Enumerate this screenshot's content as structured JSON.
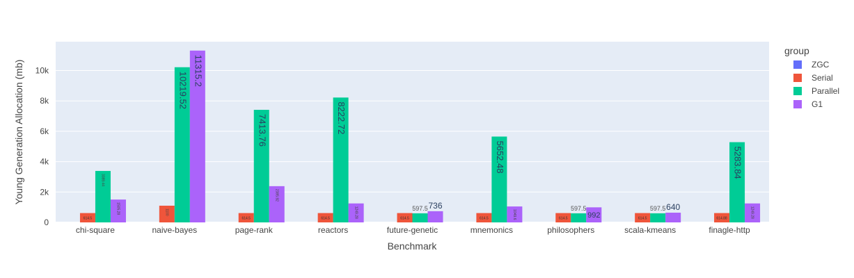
{
  "chart_data": {
    "type": "bar",
    "xlabel": "Benchmark",
    "ylabel": "Young Generation Allocation (mb)",
    "ylim": [
      0,
      11900
    ],
    "yticks": [
      0,
      2000,
      4000,
      6000,
      8000,
      10000
    ],
    "ytick_labels": [
      "0",
      "2k",
      "4k",
      "6k",
      "8k",
      "10k"
    ],
    "grid": true,
    "legend": {
      "title": "group",
      "placement": "right"
    },
    "categories": [
      "chi-square",
      "naive-bayes",
      "page-rank",
      "reactors",
      "future-genetic",
      "mnemonics",
      "philosophers",
      "scala-kmeans",
      "finagle-http"
    ],
    "series": [
      {
        "name": "ZGC",
        "color": "#636efa",
        "values": [
          0,
          0,
          0,
          0,
          0,
          0,
          0,
          0,
          0
        ],
        "labels": [
          "",
          "",
          "",
          "",
          "",
          "",
          "",
          "",
          ""
        ]
      },
      {
        "name": "Serial",
        "color": "#ef553b",
        "values": [
          614.5,
          1100,
          614.5,
          614.5,
          614.5,
          614.5,
          614.5,
          614.5,
          614.88
        ],
        "labels": [
          "614.5",
          "1100",
          "614.5",
          "614.5",
          "614.5",
          "614.5",
          "614.5",
          "614.5",
          "614.88"
        ]
      },
      {
        "name": "Parallel",
        "color": "#00cc96",
        "values": [
          3389.44,
          10219.52,
          7413.76,
          8222.72,
          597.5,
          5652.48,
          597.5,
          597.5,
          5283.84
        ],
        "labels": [
          "3389.44",
          "10219.52",
          "7413.76",
          "8222.72",
          "597.5",
          "5652.48",
          "597.5",
          "597.5",
          "5283.84"
        ]
      },
      {
        "name": "G1",
        "color": "#ab63fa",
        "values": [
          1505.28,
          11315.2,
          2385.92,
          1249.28,
          736,
          1049.6,
          992,
          640,
          1249.28
        ],
        "labels": [
          "1505.28",
          "11315.2",
          "2385.92",
          "1249.28",
          "736",
          "1049.6",
          "992",
          "640",
          "1249.28"
        ]
      }
    ]
  }
}
